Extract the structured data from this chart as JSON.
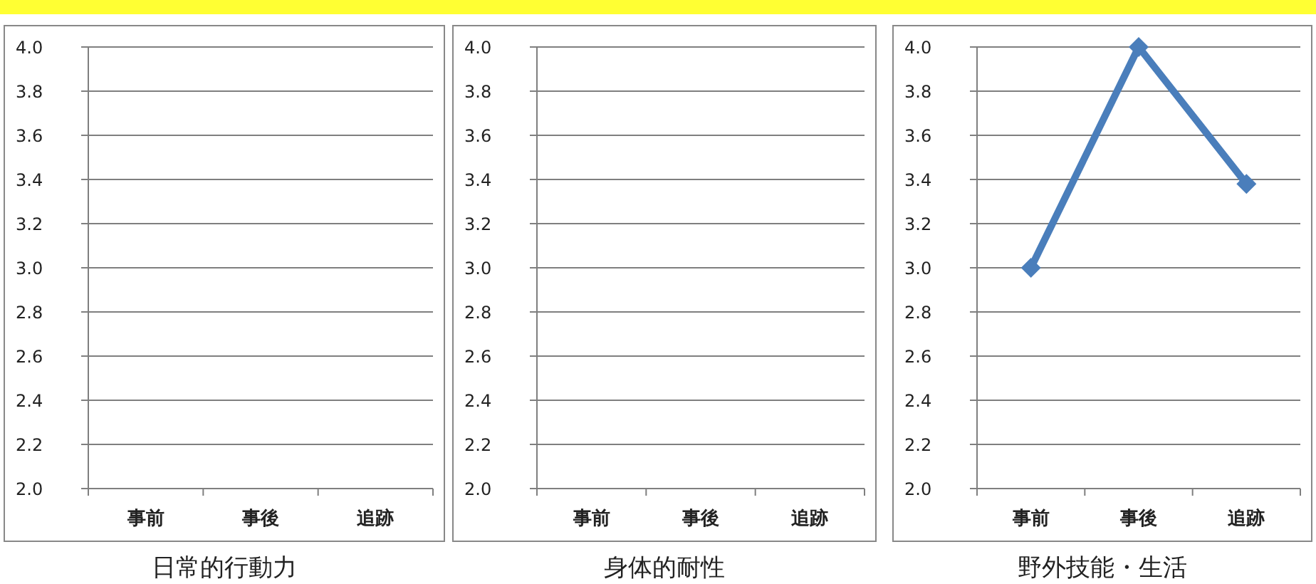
{
  "chart_data": [
    {
      "type": "line",
      "xlabel": "日常的行動力",
      "categories": [
        "事前",
        "事後",
        "追跡"
      ],
      "values": [
        null,
        null,
        null
      ],
      "ylim": [
        2.0,
        4.0
      ],
      "yticks": [
        {
          "value": 2,
          "label": "2.0"
        },
        {
          "value": 2.2,
          "label": "2.2"
        },
        {
          "value": 2.4,
          "label": "2.4"
        },
        {
          "value": 2.6,
          "label": "2.6"
        },
        {
          "value": 2.8,
          "label": "2.8"
        },
        {
          "value": 3,
          "label": "3.0"
        },
        {
          "value": 3.2,
          "label": "3.2"
        },
        {
          "value": 3.4,
          "label": "3.4"
        },
        {
          "value": 3.6,
          "label": "3.6"
        },
        {
          "value": 3.8,
          "label": "3.8"
        },
        {
          "value": 4,
          "label": "4.0"
        }
      ],
      "grid": "y"
    },
    {
      "type": "line",
      "xlabel": "身体的耐性",
      "categories": [
        "事前",
        "事後",
        "追跡"
      ],
      "values": [
        null,
        null,
        null
      ],
      "ylim": [
        2.0,
        4.0
      ],
      "yticks": [
        {
          "value": 2,
          "label": "2.0"
        },
        {
          "value": 2.2,
          "label": "2.2"
        },
        {
          "value": 2.4,
          "label": "2.4"
        },
        {
          "value": 2.6,
          "label": "2.6"
        },
        {
          "value": 2.8,
          "label": "2.8"
        },
        {
          "value": 3,
          "label": "3.0"
        },
        {
          "value": 3.2,
          "label": "3.2"
        },
        {
          "value": 3.4,
          "label": "3.4"
        },
        {
          "value": 3.6,
          "label": "3.6"
        },
        {
          "value": 3.8,
          "label": "3.8"
        },
        {
          "value": 4,
          "label": "4.0"
        }
      ],
      "grid": "y"
    },
    {
      "type": "line",
      "xlabel": "野外技能・生活",
      "categories": [
        "事前",
        "事後",
        "追跡"
      ],
      "values": [
        3.0,
        4.0,
        3.38
      ],
      "color": "#4a7ebb",
      "marker": "diamond",
      "ylim": [
        2.0,
        4.0
      ],
      "yticks": [
        {
          "value": 2,
          "label": "2.0"
        },
        {
          "value": 2.2,
          "label": "2.2"
        },
        {
          "value": 2.4,
          "label": "2.4"
        },
        {
          "value": 2.6,
          "label": "2.6"
        },
        {
          "value": 2.8,
          "label": "2.8"
        },
        {
          "value": 3,
          "label": "3.0"
        },
        {
          "value": 3.2,
          "label": "3.2"
        },
        {
          "value": 3.4,
          "label": "3.4"
        },
        {
          "value": 3.6,
          "label": "3.6"
        },
        {
          "value": 3.8,
          "label": "3.8"
        },
        {
          "value": 4,
          "label": "4.0"
        }
      ],
      "grid": "y"
    }
  ]
}
